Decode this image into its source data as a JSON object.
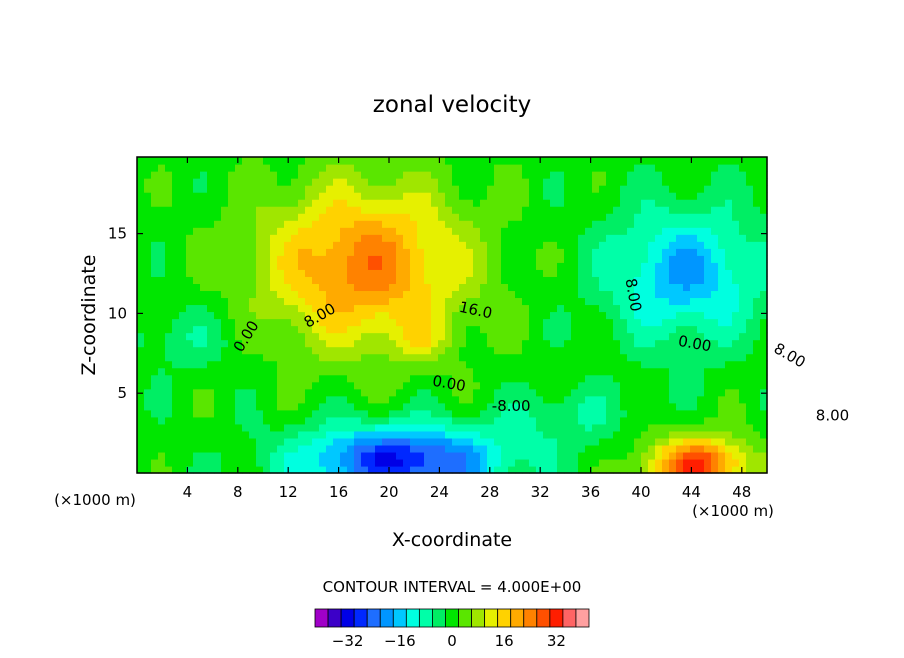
{
  "chart_data": {
    "type": "heatmap",
    "title": "zonal velocity",
    "xlabel": "X-coordinate",
    "ylabel": "Z-coordinate",
    "x_units_left": "(×1000 m)",
    "x_units_right": "(×1000 m)",
    "xlim": [
      0,
      50
    ],
    "ylim": [
      0,
      19.8
    ],
    "x_ticks": [
      4,
      8,
      12,
      16,
      20,
      24,
      28,
      32,
      36,
      40,
      44,
      48
    ],
    "y_ticks": [
      5,
      10,
      15
    ],
    "contour_interval_text": "CONTOUR INTERVAL =  4.000E+00",
    "contour_interval": 4,
    "colorbar": {
      "levels": [
        -40,
        -36,
        -32,
        -28,
        -24,
        -20,
        -16,
        -12,
        -8,
        -4,
        0,
        4,
        8,
        12,
        16,
        20,
        24,
        28,
        32,
        36,
        40
      ],
      "tick_values": [
        -32,
        -16,
        0,
        16,
        32
      ],
      "colors": [
        "#a000c8",
        "#3c00c8",
        "#0000e6",
        "#0028ff",
        "#1e6eff",
        "#0096ff",
        "#00c8ff",
        "#00ffe0",
        "#00ffa8",
        "#00ee64",
        "#00e600",
        "#5ae600",
        "#a0e600",
        "#e6f000",
        "#ffd200",
        "#ffaa00",
        "#ff8200",
        "#ff5000",
        "#ff1e00",
        "#ff6464",
        "#ffa0a0"
      ]
    },
    "contour_labels": [
      {
        "text": "0.00",
        "x": 9.0,
        "z": 8.4,
        "angle": -58
      },
      {
        "text": "8.00",
        "x": 14.7,
        "z": 9.6,
        "angle": -30
      },
      {
        "text": "16.0",
        "x": 26.8,
        "z": 9.9,
        "angle": 12
      },
      {
        "text": "8.00",
        "x": 39.0,
        "z": 11.1,
        "angle": 80
      },
      {
        "text": "0.00",
        "x": 44.2,
        "z": 7.8,
        "angle": 10
      },
      {
        "text": "8.00",
        "x": 51.6,
        "z": 7.1,
        "angle": 30
      },
      {
        "text": "0.00",
        "x": 24.7,
        "z": 5.3,
        "angle": 10
      },
      {
        "text": "-8.00",
        "x": 29.7,
        "z": 3.9,
        "angle": 0
      },
      {
        "text": "8.00",
        "x": 55.2,
        "z": 3.3,
        "angle": 0
      }
    ],
    "features": [
      {
        "name": "upper positive core",
        "center": [
          17.5,
          13.0
        ],
        "peak": 26
      },
      {
        "name": "secondary positive",
        "center": [
          22.5,
          8.3
        ],
        "peak": 22
      },
      {
        "name": "upper-right negative",
        "center": [
          43.5,
          12.5
        ],
        "peak": -15
      },
      {
        "name": "lower negative core",
        "center": [
          21.0,
          0.8
        ],
        "peak": -29
      },
      {
        "name": "lower-right positive",
        "center": [
          44.5,
          0.5
        ],
        "peak": 28
      }
    ]
  }
}
